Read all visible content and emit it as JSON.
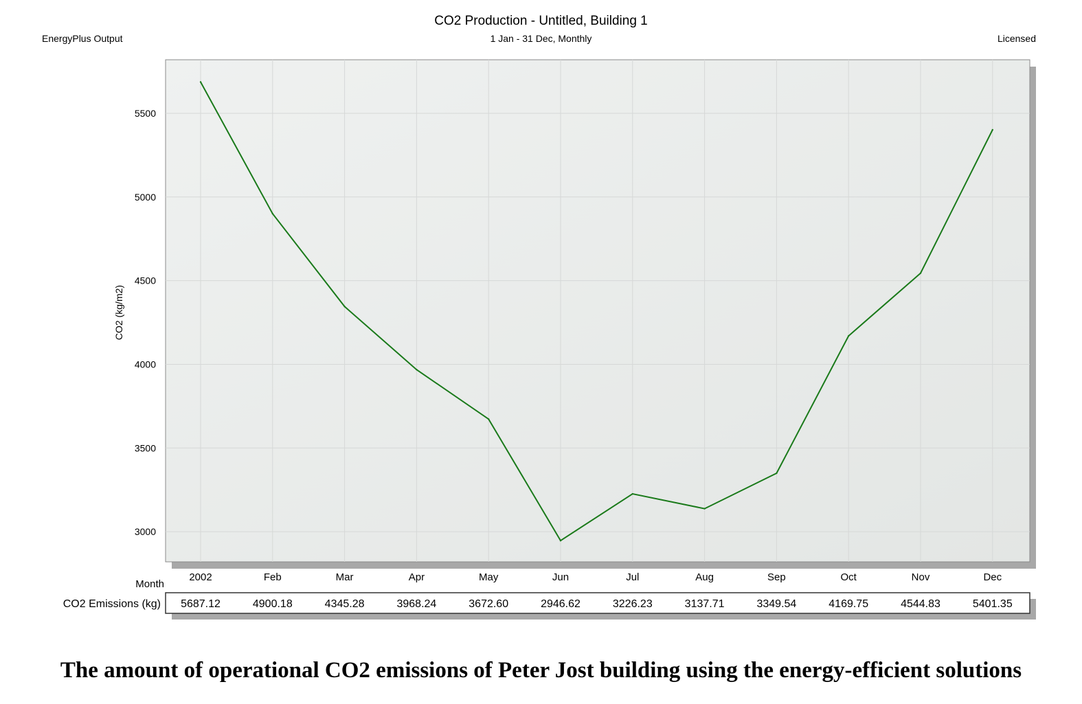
{
  "header": {
    "title": "CO2 Production - Untitled, Building 1",
    "subtitle": "1 Jan - 31 Dec, Monthly",
    "left_label": "EnergyPlus Output",
    "right_label": "Licensed"
  },
  "caption": "The amount of operational CO2 emissions of Peter Jost building using the energy-efficient solutions",
  "chart_data": {
    "type": "line",
    "title": "CO2 Production - Untitled, Building 1",
    "subtitle": "1 Jan - 31 Dec, Monthly",
    "xlabel": "Month",
    "ylabel": "CO2 (kg/m2)",
    "categories": [
      "2002",
      "Feb",
      "Mar",
      "Apr",
      "May",
      "Jun",
      "Jul",
      "Aug",
      "Sep",
      "Oct",
      "Nov",
      "Dec"
    ],
    "series": [
      {
        "name": "CO2 Emissions (kg)",
        "values": [
          5687.12,
          4900.18,
          4345.28,
          3968.24,
          3672.6,
          2946.62,
          3226.23,
          3137.71,
          3349.54,
          4169.75,
          4544.83,
          5401.35
        ],
        "value_labels": [
          "5687.12",
          "4900.18",
          "4345.28",
          "3968.24",
          "3672.60",
          "2946.62",
          "3226.23",
          "3137.71",
          "3349.54",
          "4169.75",
          "4544.83",
          "5401.35"
        ],
        "color": "#1a7a1a"
      }
    ],
    "yticks": [
      "3000",
      "3500",
      "4000",
      "4500",
      "5000",
      "5500"
    ],
    "ylim": [
      2820,
      5820
    ],
    "grid": true,
    "legend": "table-below"
  }
}
